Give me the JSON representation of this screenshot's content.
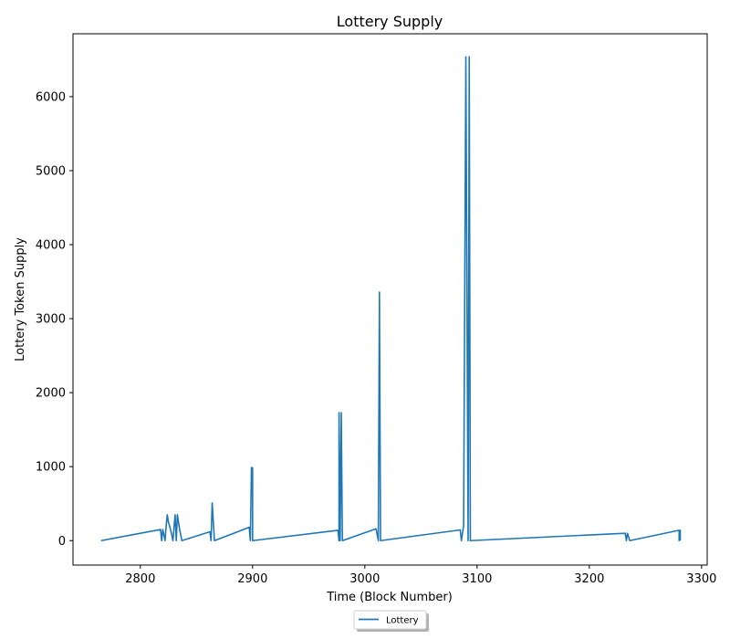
{
  "chart_data": {
    "type": "line",
    "title": "Lottery Supply",
    "xlabel": "Time (Block Number)",
    "ylabel": "Lottery Token Supply",
    "xlim": [
      2740,
      3305
    ],
    "ylim": [
      -330,
      6850
    ],
    "xticks": [
      2800,
      2900,
      3000,
      3100,
      3200,
      3300
    ],
    "yticks": [
      0,
      1000,
      2000,
      3000,
      4000,
      5000,
      6000
    ],
    "grid": false,
    "legend_placement": "bottom-center",
    "series": [
      {
        "name": "Lottery",
        "color": "#1f77b4",
        "points": [
          [
            2765,
            0
          ],
          [
            2818,
            150
          ],
          [
            2819,
            0
          ],
          [
            2820,
            150
          ],
          [
            2821,
            80
          ],
          [
            2822,
            0
          ],
          [
            2823,
            200
          ],
          [
            2824,
            350
          ],
          [
            2825,
            250
          ],
          [
            2826,
            200
          ],
          [
            2828,
            80
          ],
          [
            2829,
            0
          ],
          [
            2831,
            350
          ],
          [
            2832,
            0
          ],
          [
            2833,
            350
          ],
          [
            2835,
            150
          ],
          [
            2837,
            0
          ],
          [
            2862,
            120
          ],
          [
            2863,
            0
          ],
          [
            2864,
            510
          ],
          [
            2866,
            0
          ],
          [
            2897,
            180
          ],
          [
            2898,
            0
          ],
          [
            2899,
            990
          ],
          [
            2900,
            980
          ],
          [
            2900,
            0
          ],
          [
            2976,
            140
          ],
          [
            2977,
            0
          ],
          [
            2977,
            1730
          ],
          [
            2978,
            0
          ],
          [
            2979,
            1730
          ],
          [
            2980,
            0
          ],
          [
            3010,
            160
          ],
          [
            3012,
            0
          ],
          [
            3013,
            3360
          ],
          [
            3014,
            0
          ],
          [
            3085,
            145
          ],
          [
            3086,
            0
          ],
          [
            3088,
            200
          ],
          [
            3090,
            6540
          ],
          [
            3092,
            0
          ],
          [
            3093,
            6540
          ],
          [
            3094,
            0
          ],
          [
            3232,
            100
          ],
          [
            3233,
            0
          ],
          [
            3234,
            100
          ],
          [
            3235,
            50
          ],
          [
            3236,
            0
          ],
          [
            3280,
            140
          ],
          [
            3280,
            0
          ],
          [
            3281,
            140
          ],
          [
            3281,
            0
          ]
        ]
      }
    ]
  }
}
